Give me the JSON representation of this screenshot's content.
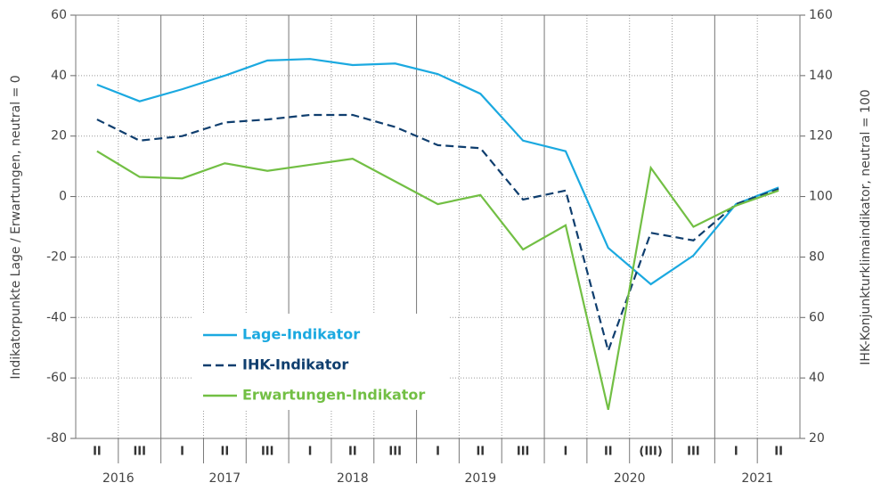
{
  "chart_data": {
    "type": "line",
    "ylabel": "Indikatorpunkte Lage / Erwartungen, neutral = 0",
    "y2label": "IHK-Konjunkturklimaindikator, neutral = 100",
    "categories": [
      "II",
      "III",
      "I",
      "II",
      "III",
      "I",
      "II",
      "III",
      "I",
      "II",
      "III",
      "I",
      "II",
      "(III)",
      "III",
      "I",
      "II"
    ],
    "years": [
      "2016",
      "2016",
      "2017",
      "2017",
      "2017",
      "2018",
      "2018",
      "2018",
      "2019",
      "2019",
      "2019",
      "2020",
      "2020",
      "2020",
      "2020",
      "2021",
      "2021"
    ],
    "series": [
      {
        "name": "Lage-Indikator",
        "color": "#1ba9e0",
        "dash": false,
        "values": [
          37,
          31.5,
          35.5,
          40,
          45,
          45.5,
          43.5,
          44,
          40.5,
          34,
          18.5,
          15,
          -17,
          -29,
          -19.5,
          -2.5,
          3
        ]
      },
      {
        "name": "IHK-Indikator",
        "color": "#0f3e6e",
        "dash": true,
        "axis": "y2",
        "values": [
          125.5,
          118.5,
          120,
          124.5,
          125.5,
          127,
          127,
          123,
          117,
          116,
          99,
          102,
          49,
          88,
          85.5,
          97.5,
          102.5
        ]
      },
      {
        "name": "Erwartungen-Indikator",
        "color": "#72bf44",
        "dash": false,
        "values": [
          15,
          6.5,
          6,
          11,
          8.5,
          10.5,
          12.5,
          5,
          -2.5,
          0.5,
          -17.5,
          -9.5,
          -70.5,
          9.5,
          -10,
          -3,
          2
        ]
      }
    ],
    "ylim": [
      -80,
      60
    ],
    "yticks": [
      -80,
      -60,
      -40,
      -20,
      0,
      20,
      40,
      60
    ],
    "y2lim": [
      20,
      160
    ],
    "y2ticks": [
      20,
      40,
      60,
      80,
      100,
      120,
      140,
      160
    ],
    "grid": true
  }
}
